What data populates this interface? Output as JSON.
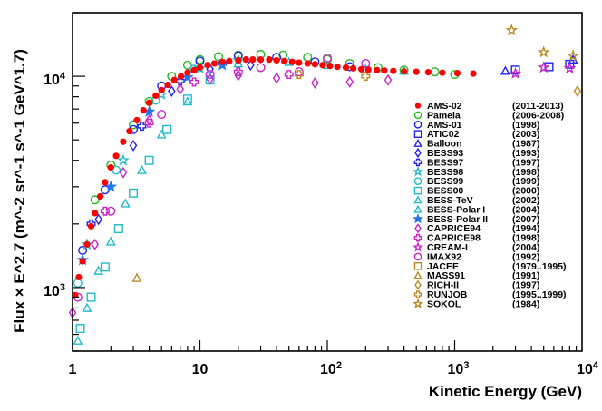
{
  "chart_data": {
    "type": "scatter",
    "title": "",
    "xlabel": "Kinetic Energy (GeV)",
    "ylabel": "Flux × E^2.7 (m^-2 sr^-1 s^-1 GeV^1.7)",
    "xscale": "log",
    "yscale": "log",
    "xlim": [
      1,
      10000
    ],
    "ylim": [
      500,
      20000
    ],
    "grid": false,
    "legend_position": "right",
    "x_ticks": [
      {
        "value": 1,
        "base": "1",
        "exp": ""
      },
      {
        "value": 10,
        "base": "10",
        "exp": ""
      },
      {
        "value": 100,
        "base": "10",
        "exp": "2"
      },
      {
        "value": 1000,
        "base": "10",
        "exp": "3"
      },
      {
        "value": 10000,
        "base": "10",
        "exp": "4"
      }
    ],
    "y_ticks": [
      {
        "value": 1000,
        "base": "10",
        "exp": "3"
      },
      {
        "value": 10000,
        "base": "10",
        "exp": "4"
      }
    ],
    "series": [
      {
        "name": "AMS-02",
        "years": "(2011-2013)",
        "color": "#ff0000",
        "marker": "filled-circle",
        "points": [
          [
            1.05,
            920
          ],
          [
            1.12,
            1120
          ],
          [
            1.2,
            1330
          ],
          [
            1.3,
            1600
          ],
          [
            1.4,
            1950
          ],
          [
            1.5,
            2250
          ],
          [
            1.65,
            2700
          ],
          [
            1.8,
            3150
          ],
          [
            2.0,
            3700
          ],
          [
            2.2,
            4200
          ],
          [
            2.5,
            4900
          ],
          [
            2.8,
            5500
          ],
          [
            3.2,
            6200
          ],
          [
            3.6,
            6900
          ],
          [
            4.0,
            7500
          ],
          [
            4.5,
            8100
          ],
          [
            5.0,
            8600
          ],
          [
            5.6,
            9100
          ],
          [
            6.3,
            9600
          ],
          [
            7.1,
            10000
          ],
          [
            8,
            10400
          ],
          [
            9,
            10700
          ],
          [
            10,
            11000
          ],
          [
            11.5,
            11300
          ],
          [
            13,
            11500
          ],
          [
            15,
            11700
          ],
          [
            17,
            11800
          ],
          [
            20,
            11900
          ],
          [
            23,
            12000
          ],
          [
            26,
            12000
          ],
          [
            30,
            12000
          ],
          [
            35,
            12000
          ],
          [
            40,
            11900
          ],
          [
            46,
            11800
          ],
          [
            53,
            11700
          ],
          [
            60,
            11600
          ],
          [
            70,
            11500
          ],
          [
            80,
            11400
          ],
          [
            92,
            11300
          ],
          [
            105,
            11200
          ],
          [
            120,
            11100
          ],
          [
            140,
            11000
          ],
          [
            160,
            10900
          ],
          [
            185,
            10800
          ],
          [
            210,
            10750
          ],
          [
            245,
            10700
          ],
          [
            280,
            10650
          ],
          [
            330,
            10600
          ],
          [
            400,
            10550
          ],
          [
            500,
            10500
          ],
          [
            620,
            10450
          ],
          [
            800,
            10400
          ],
          [
            1050,
            10350
          ],
          [
            1400,
            10300
          ]
        ]
      },
      {
        "name": "Pamela",
        "years": "(2006-2008)",
        "color": "#22bb22",
        "marker": "open-circle",
        "points": [
          [
            1.5,
            2600
          ],
          [
            2,
            3800
          ],
          [
            3,
            5900
          ],
          [
            4,
            7600
          ],
          [
            6,
            10000
          ],
          [
            8,
            11300
          ],
          [
            10,
            12000
          ],
          [
            14,
            12400
          ],
          [
            20,
            12600
          ],
          [
            30,
            12700
          ],
          [
            45,
            12600
          ],
          [
            70,
            12300
          ],
          [
            100,
            12000
          ],
          [
            150,
            11500
          ],
          [
            250,
            11000
          ],
          [
            400,
            10700
          ],
          [
            700,
            10500
          ],
          [
            1000,
            10200
          ]
        ]
      },
      {
        "name": "AMS-01",
        "years": "(1998)",
        "color": "#2222ee",
        "marker": "open-circle",
        "points": [
          [
            1.2,
            1500
          ],
          [
            1.8,
            2900
          ],
          [
            3,
            5600
          ],
          [
            5,
            9000
          ],
          [
            10,
            11800
          ],
          [
            20,
            12500
          ],
          [
            40,
            12300
          ],
          [
            80,
            11700
          ],
          [
            150,
            11100
          ]
        ]
      },
      {
        "name": "ATIC02",
        "years": "(2003)",
        "color": "#2222ee",
        "marker": "open-square",
        "points": [
          [
            3000,
            10700
          ],
          [
            5500,
            11100
          ],
          [
            8000,
            11400
          ]
        ]
      },
      {
        "name": "Balloon",
        "years": "(1987)",
        "color": "#2222ee",
        "marker": "open-triangle",
        "points": [
          [
            2500,
            10600
          ],
          [
            8500,
            12000
          ]
        ]
      },
      {
        "name": "BESS93",
        "years": "(1993)",
        "color": "#2222ee",
        "marker": "open-diamond",
        "points": [
          [
            1.6,
            2100
          ],
          [
            3,
            4700
          ],
          [
            6,
            8500
          ],
          [
            12,
            10800
          ],
          [
            25,
            11300
          ]
        ]
      },
      {
        "name": "BESS97",
        "years": "(1997)",
        "color": "#2222ee",
        "marker": "open-cross",
        "points": [
          [
            1.4,
            2000
          ],
          [
            3.5,
            5800
          ],
          [
            7,
            9500
          ],
          [
            15,
            11500
          ]
        ]
      },
      {
        "name": "BESS98",
        "years": "(1998)",
        "color": "#22bbcc",
        "marker": "open-star",
        "points": [
          [
            1.3,
            1600
          ],
          [
            2.5,
            4000
          ],
          [
            5,
            8200
          ],
          [
            10,
            10900
          ],
          [
            20,
            11900
          ]
        ]
      },
      {
        "name": "BESS99",
        "years": "(1999)",
        "color": "#22bbcc",
        "marker": "open-circle",
        "points": [
          [
            1.1,
            1050
          ],
          [
            2.2,
            3600
          ],
          [
            4.5,
            7700
          ],
          [
            9,
            10800
          ]
        ]
      },
      {
        "name": "BESS00",
        "years": "(2000)",
        "color": "#22bbcc",
        "marker": "open-square",
        "points": [
          [
            1.15,
            640
          ],
          [
            1.4,
            900
          ],
          [
            1.8,
            1250
          ],
          [
            2.3,
            1900
          ],
          [
            3,
            2800
          ],
          [
            4,
            4000
          ],
          [
            5.5,
            5600
          ],
          [
            8,
            7800
          ],
          [
            12,
            9600
          ]
        ]
      },
      {
        "name": "BESS-TeV",
        "years": "(2002)",
        "color": "#22bbcc",
        "marker": "open-triangle",
        "points": [
          [
            20,
            11500
          ],
          [
            50,
            11700
          ],
          [
            100,
            11300
          ],
          [
            200,
            10800
          ],
          [
            400,
            10600
          ]
        ]
      },
      {
        "name": "BESS-Polar I",
        "years": "(2004)",
        "color": "#22bbcc",
        "marker": "open-triangle",
        "points": [
          [
            1.1,
            560
          ],
          [
            1.3,
            800
          ],
          [
            1.6,
            1200
          ],
          [
            2.0,
            1650
          ],
          [
            2.6,
            2500
          ],
          [
            3.5,
            3600
          ],
          [
            5,
            5300
          ],
          [
            8,
            7600
          ]
        ]
      },
      {
        "name": "BESS-Polar II",
        "years": "(2007)",
        "color": "#2277ee",
        "marker": "filled-star",
        "points": [
          [
            1.2,
            1350
          ],
          [
            2,
            3000
          ],
          [
            4,
            6800
          ],
          [
            8,
            9900
          ],
          [
            15,
            11300
          ]
        ]
      },
      {
        "name": "CAPRICE94",
        "years": "(1994)",
        "color": "#cc22cc",
        "marker": "open-diamond",
        "points": [
          [
            1,
            760
          ],
          [
            1.5,
            1600
          ],
          [
            2.5,
            3500
          ],
          [
            4,
            6200
          ],
          [
            7,
            8700
          ],
          [
            12,
            9700
          ],
          [
            20,
            10100
          ],
          [
            40,
            9800
          ],
          [
            80,
            9300
          ],
          [
            150,
            9400
          ],
          [
            300,
            9600
          ]
        ]
      },
      {
        "name": "CAPRICE98",
        "years": "(1998)",
        "color": "#cc22cc",
        "marker": "open-cross",
        "points": [
          [
            1.8,
            2300
          ],
          [
            4,
            6000
          ],
          [
            9,
            9400
          ],
          [
            20,
            10500
          ],
          [
            50,
            10200
          ]
        ]
      },
      {
        "name": "CREAM-I",
        "years": "(2004)",
        "color": "#cc22cc",
        "marker": "open-star",
        "points": [
          [
            3000,
            10300
          ],
          [
            5000,
            11000
          ],
          [
            8000,
            10900
          ]
        ]
      },
      {
        "name": "IMAX92",
        "years": "(1992)",
        "color": "#cc22cc",
        "marker": "open-circle",
        "points": [
          [
            1.1,
            900
          ],
          [
            2,
            2300
          ],
          [
            5,
            6600
          ],
          [
            12,
            10200
          ],
          [
            30,
            11000
          ],
          [
            60,
            10500
          ],
          [
            100,
            12200
          ],
          [
            200,
            11500
          ]
        ]
      },
      {
        "name": "JACEE",
        "years": "(1979..1995)",
        "color": "#bb8822",
        "marker": "open-square",
        "points": []
      },
      {
        "name": "MASS91",
        "years": "(1991)",
        "color": "#bb8822",
        "marker": "open-triangle",
        "points": [
          [
            3.2,
            1110
          ]
        ]
      },
      {
        "name": "RICH-II",
        "years": "(1997)",
        "color": "#bb8822",
        "marker": "open-diamond",
        "points": [
          [
            9200,
            8500
          ]
        ]
      },
      {
        "name": "RUNJOB",
        "years": "(1995..1999)",
        "color": "#bb8822",
        "marker": "open-cross",
        "points": [
          [
            60,
            10200
          ],
          [
            200,
            10000
          ]
        ]
      },
      {
        "name": "SOKOL",
        "years": "(1984)",
        "color": "#bb8822",
        "marker": "open-star",
        "points": [
          [
            2800,
            16500
          ],
          [
            5000,
            13000
          ],
          [
            8500,
            12500
          ]
        ]
      }
    ]
  }
}
